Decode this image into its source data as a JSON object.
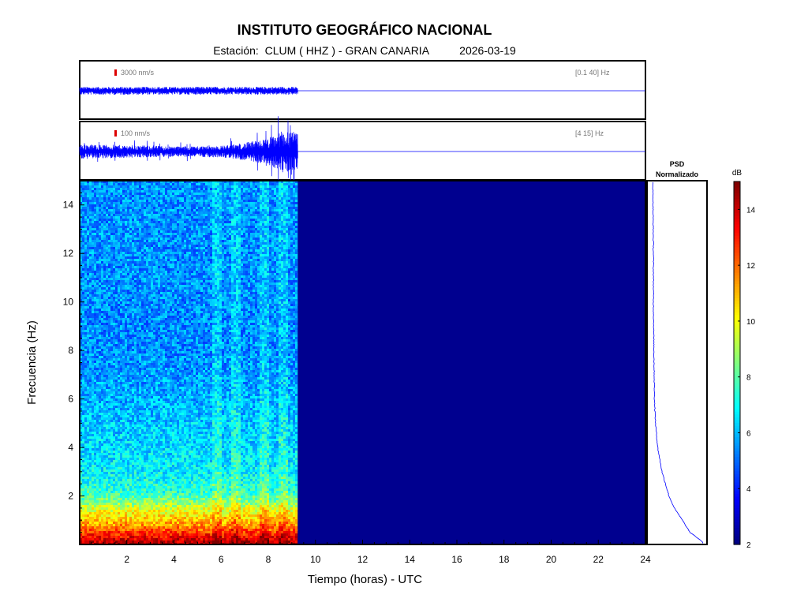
{
  "header": {
    "title": "INSTITUTO GEOGRÁFICO NACIONAL",
    "station_label": "Estación:",
    "station": "CLUM ( HHZ ) - GRAN CANARIA",
    "date": "2026-03-19"
  },
  "colors": {
    "trace": "#0000ff",
    "scale_marker": "#dd0000",
    "no_data": "#00008f"
  },
  "chart_data": [
    {
      "type": "line",
      "name": "waveform-broadband",
      "scale_label": "3000 nm/s",
      "band_label": "[0.1 40] Hz",
      "x": [
        0,
        9.25,
        24
      ],
      "amplitude_envelope": [
        0.38,
        0.38,
        0.0
      ],
      "xlim": [
        0,
        24
      ]
    },
    {
      "type": "line",
      "name": "waveform-filtered",
      "scale_label": "100 nm/s",
      "band_label": "[4 15] Hz",
      "x": [
        0,
        2,
        4,
        6,
        7,
        8,
        8.6,
        9.25,
        24
      ],
      "amplitude_envelope": [
        0.25,
        0.22,
        0.18,
        0.2,
        0.3,
        0.45,
        0.75,
        0.6,
        0.0
      ],
      "xlim": [
        0,
        24
      ]
    },
    {
      "type": "heatmap",
      "name": "spectrogram",
      "xlabel": "Tiempo (horas) - UTC",
      "ylabel": "Frecuencia  (Hz)",
      "xlim": [
        0,
        24
      ],
      "ylim": [
        0,
        15
      ],
      "xticks": [
        2,
        4,
        6,
        8,
        10,
        12,
        14,
        16,
        18,
        20,
        22,
        24
      ],
      "yticks": [
        2,
        4,
        6,
        8,
        10,
        12,
        14
      ],
      "data_end_hour": 9.25,
      "frequency_profile_hz": [
        0,
        0.3,
        0.6,
        1,
        1.5,
        1.8,
        2.2,
        3,
        4,
        5,
        6,
        7,
        8,
        10,
        12,
        15
      ],
      "frequency_profile_db": [
        14.5,
        13.5,
        12.2,
        10.8,
        9.6,
        8.4,
        7.4,
        6.8,
        6.4,
        6.2,
        5.9,
        5.6,
        5.4,
        5.4,
        5.5,
        5.5
      ],
      "empty_value_db": 2.6
    },
    {
      "type": "line",
      "name": "psd-normalized",
      "title": "PSD\nNormalizado",
      "y_hz": [
        0.1,
        0.5,
        1,
        1.5,
        2,
        3,
        4,
        5,
        6,
        8,
        10,
        12,
        15
      ],
      "psd_norm": [
        0.98,
        0.74,
        0.6,
        0.45,
        0.35,
        0.22,
        0.14,
        0.1,
        0.08,
        0.07,
        0.06,
        0.06,
        0.05
      ],
      "ylim": [
        0,
        15
      ]
    },
    {
      "type": "heatmap",
      "name": "colorbar",
      "title": "dB",
      "range": [
        2,
        15
      ],
      "ticks": [
        2,
        4,
        6,
        8,
        10,
        12,
        14
      ]
    }
  ]
}
